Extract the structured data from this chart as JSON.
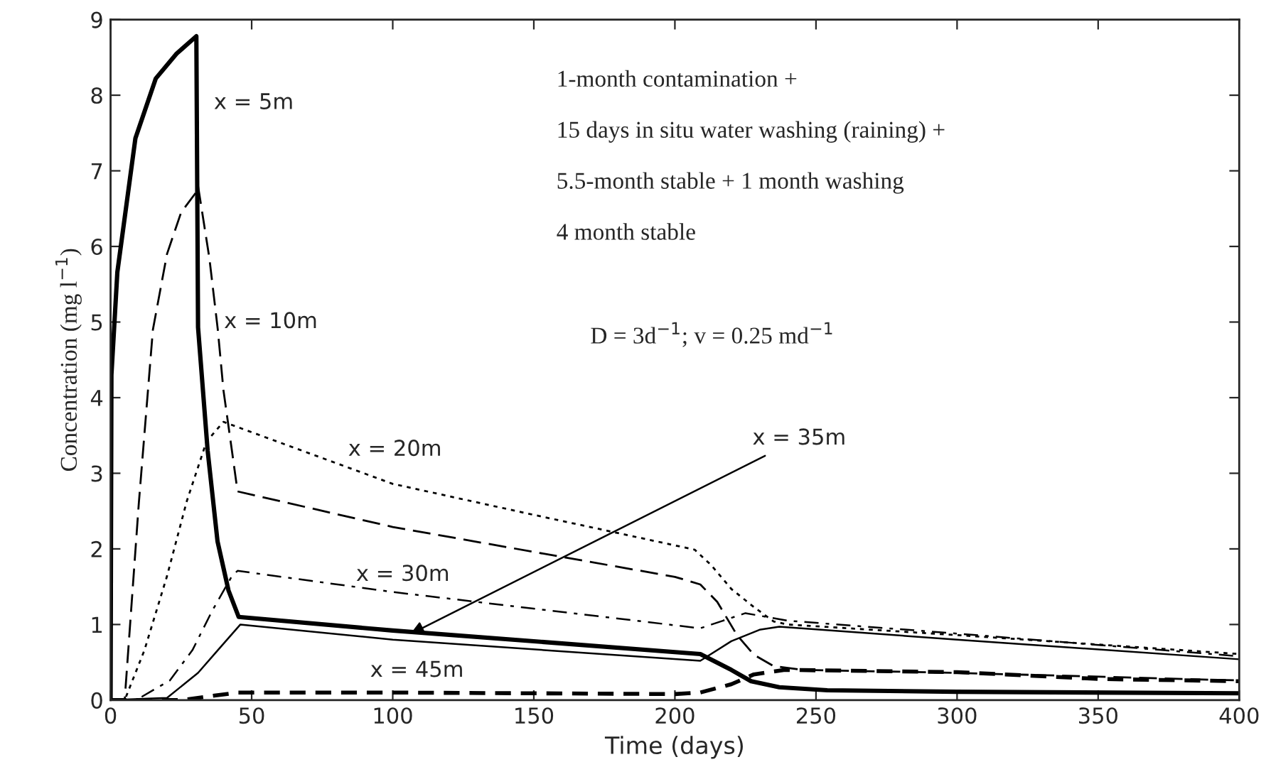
{
  "chart_data": {
    "type": "line",
    "xlabel": "Time (days)",
    "ylabel": "Concentration (mg l$^{−1}$)",
    "xlim": [
      0,
      400
    ],
    "ylim": [
      0,
      9
    ],
    "xticks": [
      0,
      50,
      100,
      150,
      200,
      250,
      300,
      350,
      400
    ],
    "yticks": [
      0,
      1,
      2,
      3,
      4,
      5,
      6,
      7,
      8,
      9
    ],
    "grid": false,
    "legend": false,
    "series": [
      {
        "color": "#000000",
        "line_style": "solid",
        "x": [
          0,
          0.3,
          2.4,
          8.8,
          16,
          23.4,
          30.4,
          31,
          34.4,
          37.9,
          41.8,
          45.4,
          100,
          209,
          220,
          227,
          237,
          254,
          300,
          400
        ],
        "values": [
          0,
          4.3,
          5.66,
          7.43,
          8.22,
          8.55,
          8.78,
          4.93,
          3.3,
          2.1,
          1.45,
          1.1,
          0.92,
          0.61,
          0.4,
          0.25,
          0.17,
          0.13,
          0.11,
          0.09
        ]
      },
      {
        "color": "#000000",
        "line_style": "dashed",
        "x": [
          0,
          5,
          10,
          15,
          20,
          25,
          30,
          31,
          35,
          38,
          40,
          43,
          45,
          100,
          200,
          209,
          215,
          222,
          228,
          235,
          245,
          300,
          400
        ],
        "values": [
          0,
          0,
          2.6,
          4.9,
          5.9,
          6.45,
          6.7,
          6.8,
          5.85,
          4.9,
          4.1,
          3.3,
          2.76,
          2.29,
          1.63,
          1.53,
          1.3,
          0.86,
          0.6,
          0.45,
          0.4,
          0.36,
          0.26
        ]
      },
      {
        "color": "#000000",
        "line_style": "dotted",
        "x": [
          0,
          5,
          12,
          20,
          27,
          34,
          40,
          100,
          150,
          207,
          213,
          220,
          228,
          235,
          240,
          300,
          400
        ],
        "values": [
          0,
          0,
          0.66,
          1.64,
          2.63,
          3.42,
          3.68,
          2.86,
          2.45,
          1.99,
          1.78,
          1.47,
          1.23,
          1.04,
          1.0,
          0.86,
          0.61
        ]
      },
      {
        "color": "#000000",
        "line_style": "dashdot",
        "x": [
          0,
          9,
          21,
          29,
          36,
          43,
          45,
          100,
          209,
          225,
          240,
          300,
          400
        ],
        "values": [
          0,
          0,
          0.26,
          0.66,
          1.18,
          1.64,
          1.71,
          1.43,
          0.95,
          1.15,
          1.05,
          0.88,
          0.58
        ]
      },
      {
        "color": "#000000",
        "line_style": "solid",
        "x": [
          0,
          20,
          31,
          38,
          46,
          100,
          209,
          220,
          230,
          237,
          300,
          400
        ],
        "values": [
          0,
          0.03,
          0.36,
          0.66,
          1.0,
          0.8,
          0.52,
          0.78,
          0.93,
          0.97,
          0.8,
          0.54
        ]
      },
      {
        "color": "#000000",
        "line_style": "dashed",
        "x": [
          0,
          25,
          45,
          100,
          200,
          209,
          220,
          228,
          239,
          300,
          350,
          400
        ],
        "values": [
          0,
          0,
          0.1,
          0.1,
          0.08,
          0.1,
          0.21,
          0.34,
          0.4,
          0.37,
          0.28,
          0.25
        ]
      }
    ],
    "annotations": [
      {
        "text": "x = 5m",
        "x": 31,
        "y": 8.0
      },
      {
        "text": "x = 10m",
        "x": 36,
        "y": 5.0
      },
      {
        "text": "x = 20m",
        "x": 80,
        "y": 3.05
      },
      {
        "text": "x = 30m",
        "x": 87,
        "y": 1.5
      },
      {
        "text": "x = 35m",
        "x": 105,
        "y": 0.85
      },
      {
        "text": "x = 45m",
        "x": 92,
        "y": 0.1
      },
      "1-month contamination +",
      "15 days in situ water washing (raining) +",
      "5.5-month stable + 1 month washing",
      "4 month stable",
      "D = 3d$^{−1}$; v = 0.25 md$^{−1}$"
    ]
  }
}
